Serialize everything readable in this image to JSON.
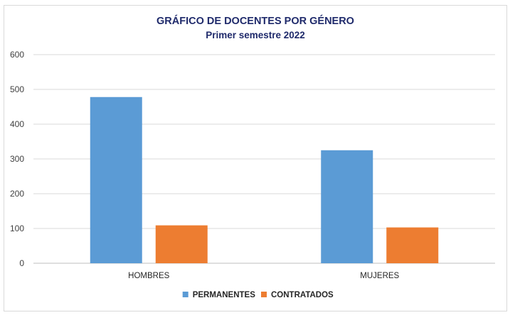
{
  "chart_data": {
    "type": "bar",
    "title": "GRÁFICO DE DOCENTES POR GÉNERO",
    "subtitle": "Primer semestre 2022",
    "categories": [
      "HOMBRES",
      "MUJERES"
    ],
    "series": [
      {
        "name": "PERMANENTES",
        "values": [
          478,
          325
        ],
        "color": "#5b9bd5"
      },
      {
        "name": "CONTRATADOS",
        "values": [
          109,
          103
        ],
        "color": "#ed7d31"
      }
    ],
    "xlabel": "",
    "ylabel": "",
    "ylim": [
      0,
      600
    ],
    "yticks": [
      0,
      100,
      200,
      300,
      400,
      500,
      600
    ],
    "grid": true,
    "legend_position": "bottom"
  }
}
